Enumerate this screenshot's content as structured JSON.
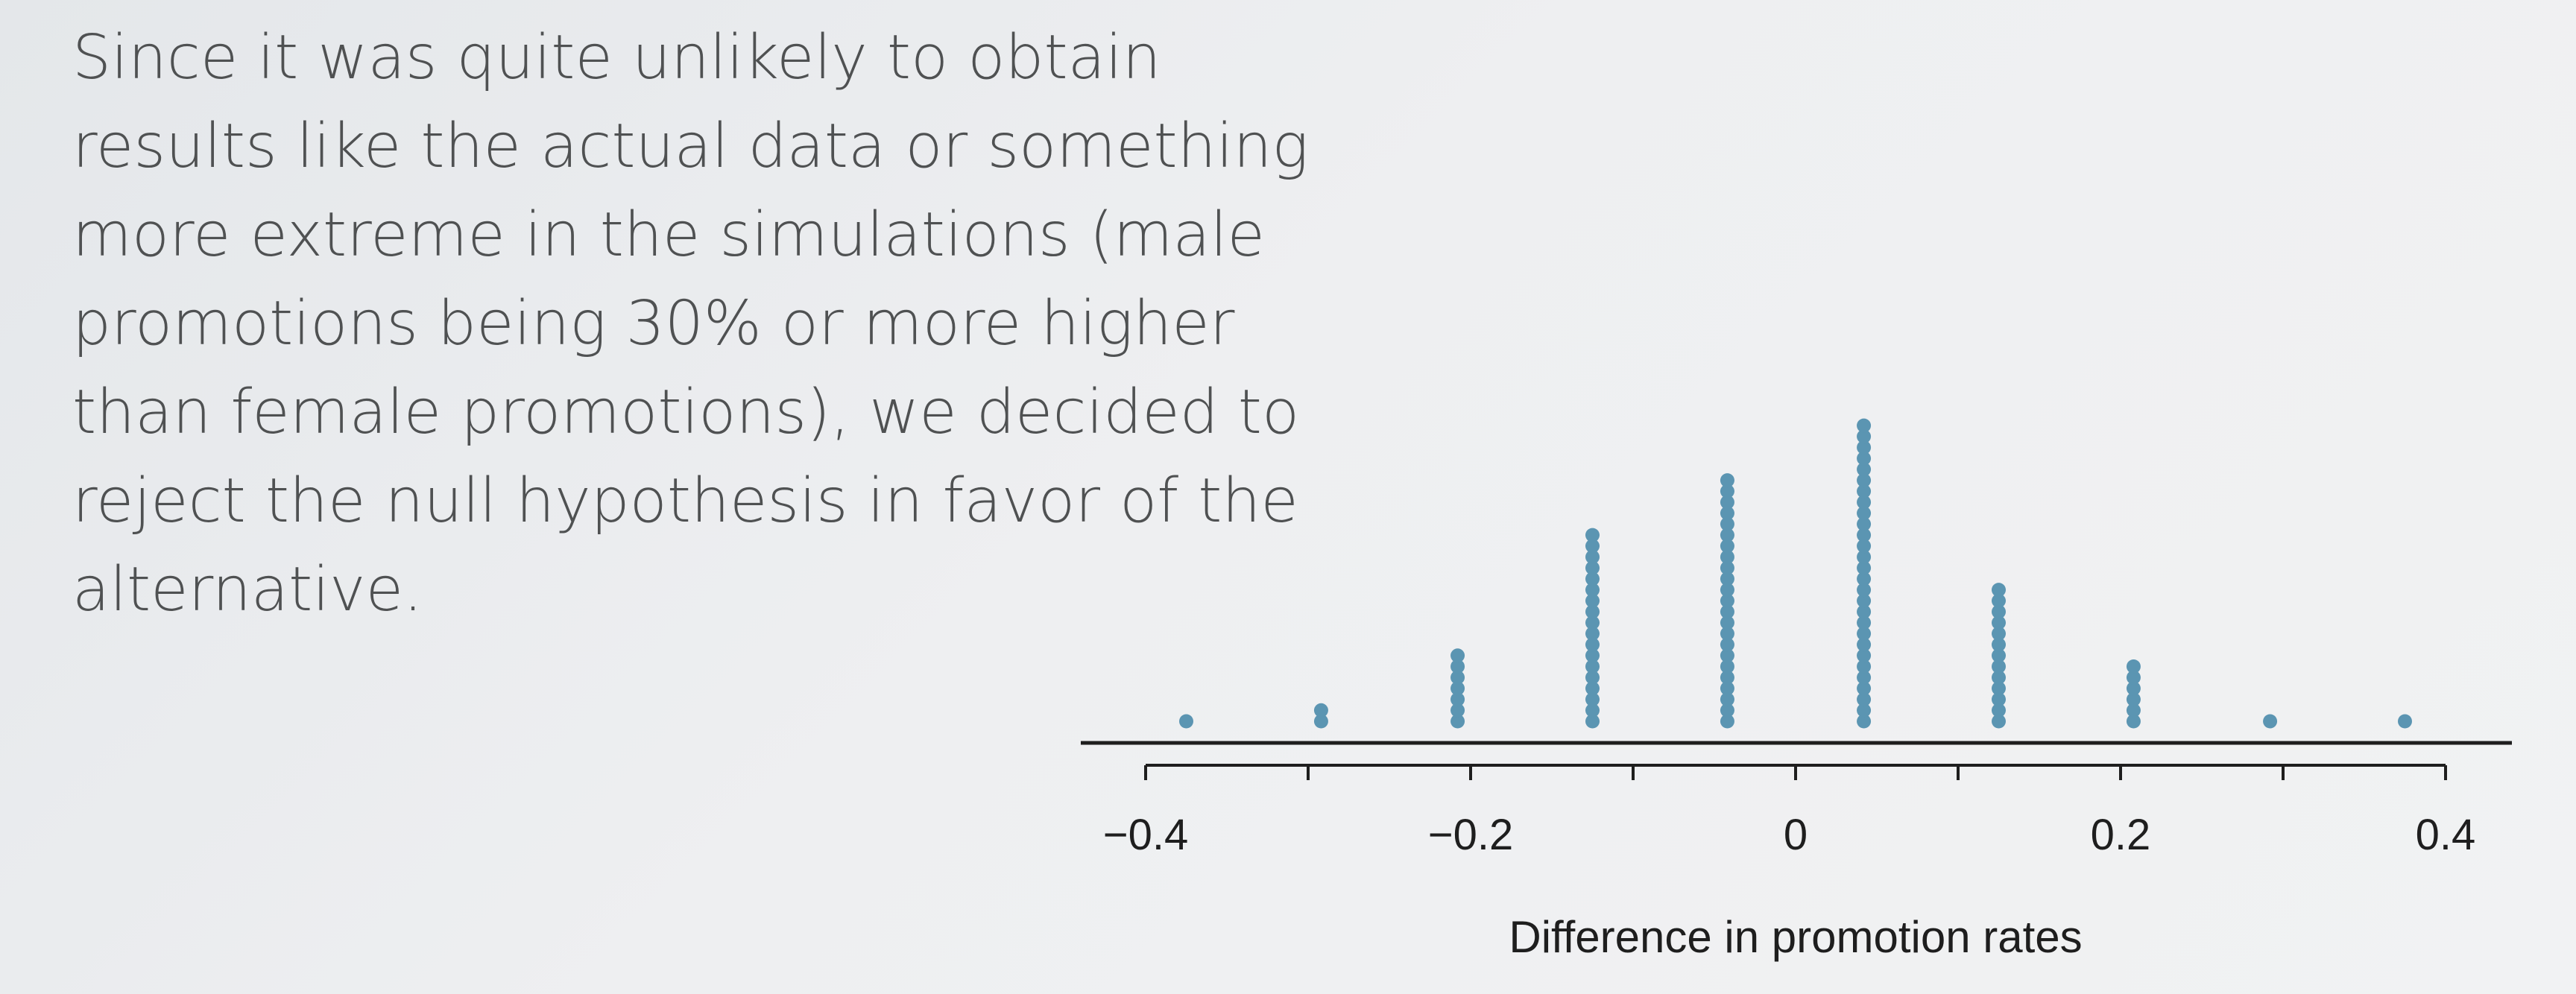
{
  "slide": {
    "body_text": "Since it was quite unlikely to obtain\nresults like the actual data or something\nmore extreme in the simulations (male\npromotions being 30% or more higher\nthan female promotions), we decided to\nreject the null hypothesis in favor of the\nalternative."
  },
  "colors": {
    "background": "#eceef0",
    "text": "#4f5152",
    "dot": "#5b95b2",
    "axis": "#1e1e1e"
  },
  "chart_data": {
    "type": "scatter",
    "subtype": "dot plot",
    "title": "",
    "xlabel": "Difference in promotion rates",
    "ylabel": "",
    "xlim": [
      -0.44,
      0.44
    ],
    "grid": false,
    "x_ticks": [
      -0.4,
      -0.3,
      -0.2,
      -0.1,
      0,
      0.1,
      0.2,
      0.3,
      0.4
    ],
    "x_tick_labels": [
      "−0.4",
      "",
      "−0.2",
      "",
      "0",
      "",
      "0.2",
      "",
      "0.4"
    ],
    "x": [
      -0.375,
      -0.292,
      -0.208,
      -0.125,
      -0.042,
      0.042,
      0.125,
      0.208,
      0.292,
      0.375
    ],
    "counts": [
      1,
      2,
      7,
      18,
      23,
      28,
      13,
      6,
      1,
      1
    ]
  }
}
